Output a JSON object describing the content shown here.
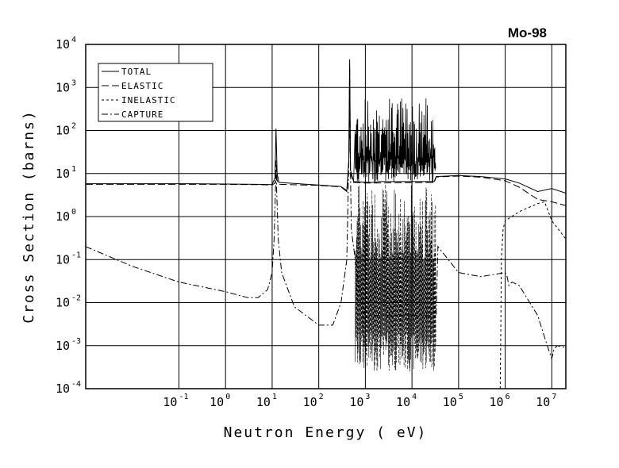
{
  "chart_data": {
    "type": "line",
    "title": "Mo-98",
    "xlabel": "Neutron Energy ( eV)",
    "ylabel": "Cross Section (barns)",
    "xscale": "log",
    "yscale": "log",
    "xlim": [
      0.001,
      20000000
    ],
    "ylim": [
      0.0001,
      10000
    ],
    "grid": true,
    "legend_position": "top-left",
    "x_ticks": [
      {
        "base": "10",
        "exp": "-1",
        "value": 0.1
      },
      {
        "base": "10",
        "exp": "0",
        "value": 1
      },
      {
        "base": "10",
        "exp": "1",
        "value": 10
      },
      {
        "base": "10",
        "exp": "2",
        "value": 100
      },
      {
        "base": "10",
        "exp": "3",
        "value": 1000
      },
      {
        "base": "10",
        "exp": "4",
        "value": 10000
      },
      {
        "base": "10",
        "exp": "5",
        "value": 100000
      },
      {
        "base": "10",
        "exp": "6",
        "value": 1000000
      },
      {
        "base": "10",
        "exp": "7",
        "value": 10000000
      }
    ],
    "y_ticks": [
      {
        "base": "10",
        "exp": "-4",
        "value": 0.0001
      },
      {
        "base": "10",
        "exp": "-3",
        "value": 0.001
      },
      {
        "base": "10",
        "exp": "-2",
        "value": 0.01
      },
      {
        "base": "10",
        "exp": "-1",
        "value": 0.1
      },
      {
        "base": "10",
        "exp": "0",
        "value": 1
      },
      {
        "base": "10",
        "exp": "1",
        "value": 10
      },
      {
        "base": "10",
        "exp": "2",
        "value": 100
      },
      {
        "base": "10",
        "exp": "3",
        "value": 1000
      },
      {
        "base": "10",
        "exp": "4",
        "value": 10000
      }
    ],
    "series": [
      {
        "name": "TOTAL",
        "dash": "solid",
        "points": [
          [
            0.001,
            5.8
          ],
          [
            0.2,
            5.8
          ],
          [
            1,
            5.7
          ],
          [
            5,
            5.6
          ],
          [
            10,
            5.5
          ],
          [
            11.5,
            8
          ],
          [
            12.1,
            110
          ],
          [
            12.8,
            10
          ],
          [
            14,
            6.2
          ],
          [
            100,
            5.4
          ],
          [
            300,
            5.0
          ],
          [
            400,
            4.0
          ],
          [
            440,
            20
          ],
          [
            460,
            4500
          ],
          [
            480,
            12
          ],
          [
            560,
            6.5
          ],
          [
            1000,
            6.3
          ],
          [
            1600,
            6.2
          ],
          [
            2000,
            6.5
          ],
          [
            30000,
            6.5
          ],
          [
            33000,
            8.5
          ],
          [
            100000,
            9.0
          ],
          [
            300000,
            8.5
          ],
          [
            1000000,
            7.5
          ],
          [
            2000000,
            6.0
          ],
          [
            5000000,
            3.8
          ],
          [
            10000000,
            4.5
          ],
          [
            20000000,
            3.5
          ]
        ]
      },
      {
        "name": "ELASTIC",
        "dash": "long-dash",
        "points": [
          [
            0.001,
            5.6
          ],
          [
            0.2,
            5.6
          ],
          [
            1,
            5.6
          ],
          [
            5,
            5.5
          ],
          [
            10,
            5.4
          ],
          [
            11.5,
            6
          ],
          [
            12.1,
            20
          ],
          [
            12.8,
            7
          ],
          [
            14,
            5.6
          ],
          [
            100,
            5.3
          ],
          [
            300,
            4.9
          ],
          [
            400,
            3.8
          ],
          [
            440,
            15
          ],
          [
            460,
            3000
          ],
          [
            480,
            10
          ],
          [
            560,
            6.2
          ],
          [
            1000,
            6.0
          ],
          [
            30000,
            6.2
          ],
          [
            33000,
            8.3
          ],
          [
            100000,
            8.7
          ],
          [
            300000,
            8.2
          ],
          [
            1000000,
            6.8
          ],
          [
            2000000,
            4.8
          ],
          [
            5000000,
            2.5
          ],
          [
            10000000,
            2.2
          ],
          [
            20000000,
            1.8
          ]
        ]
      },
      {
        "name": "INELASTIC",
        "dash": "short-dash",
        "points": [
          [
            780000,
            0.0001
          ],
          [
            800000,
            0.001
          ],
          [
            830000,
            0.1
          ],
          [
            900000,
            0.5
          ],
          [
            1000000,
            0.8
          ],
          [
            2000000,
            1.3
          ],
          [
            5000000,
            2.0
          ],
          [
            7000000,
            2.2
          ],
          [
            10000000,
            0.8
          ],
          [
            15000000,
            0.45
          ],
          [
            20000000,
            0.3
          ]
        ]
      },
      {
        "name": "CAPTURE",
        "dash": "dash-dot",
        "points": [
          [
            0.001,
            0.2
          ],
          [
            0.01,
            0.07
          ],
          [
            0.1,
            0.03
          ],
          [
            1,
            0.018
          ],
          [
            3,
            0.013
          ],
          [
            5,
            0.013
          ],
          [
            8,
            0.02
          ],
          [
            10,
            0.05
          ],
          [
            11,
            0.3
          ],
          [
            12.1,
            12
          ],
          [
            13.5,
            0.3
          ],
          [
            16,
            0.05
          ],
          [
            30,
            0.008
          ],
          [
            100,
            0.003
          ],
          [
            200,
            0.003
          ],
          [
            300,
            0.01
          ],
          [
            400,
            0.1
          ],
          [
            460,
            200
          ],
          [
            500,
            0.5
          ],
          [
            700,
            0.03
          ],
          [
            1000,
            0.005
          ],
          [
            33000,
            0.005
          ],
          [
            36000,
            0.2
          ],
          [
            100000,
            0.05
          ],
          [
            300000,
            0.04
          ],
          [
            1000000,
            0.05
          ],
          [
            1100000,
            0.04
          ],
          [
            1200000,
            0.025
          ],
          [
            1400000,
            0.03
          ],
          [
            2000000,
            0.025
          ],
          [
            5000000,
            0.005
          ],
          [
            8000000,
            0.001
          ],
          [
            10000000,
            0.0005
          ],
          [
            11000000,
            0.0008
          ],
          [
            13000000,
            0.001
          ],
          [
            20000000,
            0.0009
          ]
        ]
      }
    ]
  }
}
